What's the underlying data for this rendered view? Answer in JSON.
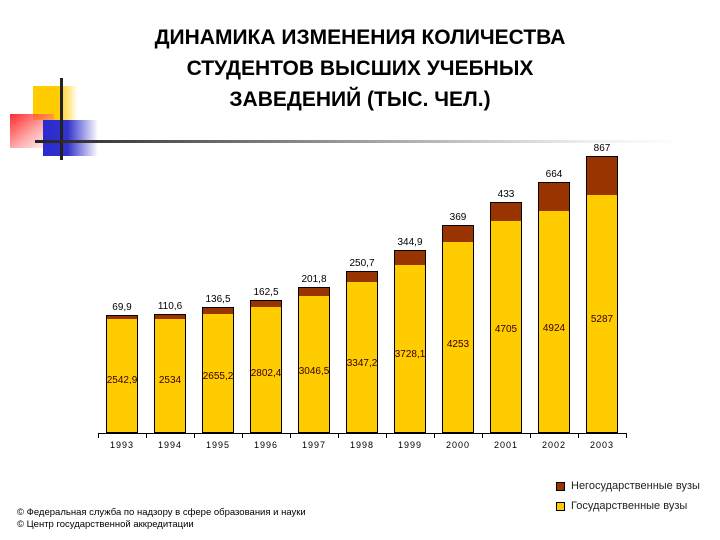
{
  "title": "ДИНАМИКА ИЗМЕНЕНИЯ КОЛИЧЕСТВА\nСТУДЕНТОВ ВЫСШИХ УЧЕБНЫХ\nЗАВЕДЕНИЙ (ТЫС. ЧЕЛ.)",
  "colors": {
    "state": "#ffcc00",
    "nonstate": "#993300"
  },
  "legend": {
    "nonstate": "Негосударственные вузы",
    "state": "Государственные вузы"
  },
  "source": [
    "© Федеральная служба по надзору в сфере образования и науки",
    "© Центр государственной аккредитации"
  ],
  "labels": {
    "state": [
      "2542,9",
      "2534",
      "2655,2",
      "2802,4",
      "3046,5",
      "3347,2",
      "3728,1",
      "4253",
      "4705",
      "4924",
      "5287"
    ],
    "nonstate": [
      "69,9",
      "110,6",
      "136,5",
      "162,5",
      "201,8",
      "250,7",
      "344,9",
      "369",
      "433",
      "664",
      "867"
    ]
  },
  "chart_data": {
    "type": "bar",
    "stacked": true,
    "title": "ДИНАМИКА ИЗМЕНЕНИЯ КОЛИЧЕСТВА СТУДЕНТОВ ВЫСШИХ УЧЕБНЫХ ЗАВЕДЕНИЙ (ТЫС. ЧЕЛ.)",
    "xlabel": "",
    "ylabel": "",
    "categories": [
      "1993",
      "1994",
      "1995",
      "1996",
      "1997",
      "1998",
      "1999",
      "2000",
      "2001",
      "2002",
      "2003"
    ],
    "series": [
      {
        "name": "Государственные вузы",
        "color": "#ffcc00",
        "values": [
          2542.9,
          2534,
          2655.2,
          2802.4,
          3046.5,
          3347.2,
          3728.1,
          4253,
          4705,
          4924,
          5287
        ]
      },
      {
        "name": "Негосударственные вузы",
        "color": "#993300",
        "values": [
          69.9,
          110.6,
          136.5,
          162.5,
          201.8,
          250.7,
          344.9,
          369,
          433,
          664,
          867
        ]
      }
    ],
    "ylim": [
      0,
      6200
    ],
    "grid": false,
    "y_axis_visible": false,
    "legend_position": "bottom-right",
    "data_labels": true
  }
}
